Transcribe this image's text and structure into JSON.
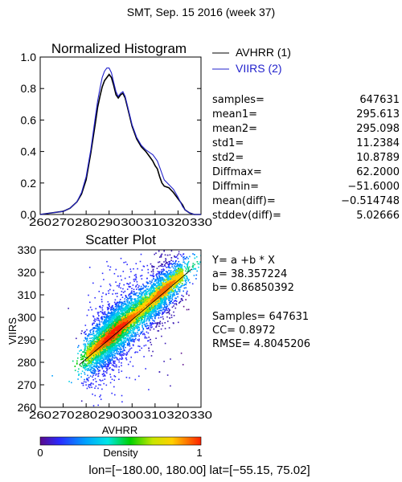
{
  "title": "SMT,  Sep. 15 2016 (week 37)",
  "footer": "lon=[−180.00, 180.00] lat=[−55.15, 75.02]",
  "colors": {
    "avhrr": "#000000",
    "viirs": "#2222cc"
  },
  "histogram": {
    "title": "Normalized Histogram",
    "legend": [
      {
        "label": "AVHRR (1)",
        "color": "#000000"
      },
      {
        "label": "VIIRS (2)",
        "color": "#2222cc"
      }
    ],
    "stats": [
      {
        "key": "samples=",
        "value": "647631"
      },
      {
        "key": "mean1=",
        "value": "295.613"
      },
      {
        "key": "mean2=",
        "value": "295.098"
      },
      {
        "key": "std1=",
        "value": "11.2384"
      },
      {
        "key": "std2=",
        "value": "10.8789"
      },
      {
        "key": "Diffmax=",
        "value": "62.2000"
      },
      {
        "key": "Diffmin=",
        "value": "−51.6000"
      },
      {
        "key": "mean(diff)=",
        "value": "−0.514748"
      },
      {
        "key": "stddev(diff)=",
        "value": "5.02666"
      }
    ],
    "xticks": [
      "260",
      "270",
      "280",
      "290",
      "300",
      "310",
      "320",
      "330"
    ],
    "yticks": [
      "0.0",
      "0.2",
      "0.4",
      "0.6",
      "0.8",
      "1.0"
    ]
  },
  "scatter": {
    "title": "Scatter Plot",
    "xlabel": "AVHRR",
    "ylabel": "VIIRS",
    "xticks": [
      "260",
      "270",
      "280",
      "290",
      "300",
      "310",
      "320",
      "330"
    ],
    "yticks": [
      "260",
      "270",
      "280",
      "290",
      "300",
      "310",
      "320",
      "330"
    ],
    "fit_lines": [
      "Y=  a  +b  *  X",
      "a=  38.357224",
      "b=  0.86850392"
    ],
    "metric_lines": [
      "Samples=  647631",
      "CC=    0.8972",
      "RMSE=  4.8045206"
    ]
  },
  "colorbar": {
    "min_label": "0",
    "max_label": "1",
    "label": "Density"
  },
  "chart_data": [
    {
      "type": "line",
      "title": "Normalized Histogram",
      "xlabel": "",
      "ylabel": "",
      "xlim": [
        260,
        330
      ],
      "ylim": [
        0,
        1.0
      ],
      "series": [
        {
          "name": "AVHRR (1)",
          "x": [
            260,
            265,
            270,
            273,
            276,
            278,
            280,
            282,
            284,
            285,
            286,
            287,
            288,
            289,
            290,
            291,
            292,
            293,
            294,
            295,
            296,
            297,
            298,
            300,
            302,
            304,
            306,
            307,
            308,
            309,
            310,
            311,
            312,
            313,
            314,
            316,
            318,
            320,
            321,
            322,
            323,
            324,
            325,
            327,
            330
          ],
          "y": [
            0.0,
            0.01,
            0.02,
            0.04,
            0.08,
            0.13,
            0.22,
            0.39,
            0.58,
            0.68,
            0.75,
            0.81,
            0.85,
            0.87,
            0.89,
            0.87,
            0.82,
            0.76,
            0.74,
            0.76,
            0.77,
            0.74,
            0.68,
            0.56,
            0.48,
            0.43,
            0.4,
            0.38,
            0.36,
            0.34,
            0.31,
            0.29,
            0.24,
            0.2,
            0.18,
            0.17,
            0.14,
            0.1,
            0.08,
            0.06,
            0.03,
            0.02,
            0.01,
            0.0,
            0.0
          ]
        },
        {
          "name": "VIIRS (2)",
          "x": [
            260,
            265,
            270,
            273,
            276,
            278,
            280,
            282,
            284,
            285,
            286,
            287,
            288,
            289,
            290,
            291,
            292,
            293,
            294,
            295,
            296,
            297,
            298,
            300,
            302,
            304,
            306,
            307,
            308,
            309,
            310,
            311,
            312,
            313,
            314,
            316,
            318,
            320,
            321,
            322,
            323,
            324,
            325,
            327,
            330
          ],
          "y": [
            0.0,
            0.01,
            0.02,
            0.04,
            0.08,
            0.14,
            0.24,
            0.41,
            0.62,
            0.72,
            0.8,
            0.87,
            0.91,
            0.93,
            0.93,
            0.9,
            0.84,
            0.78,
            0.75,
            0.77,
            0.78,
            0.75,
            0.69,
            0.57,
            0.49,
            0.44,
            0.41,
            0.4,
            0.39,
            0.38,
            0.36,
            0.34,
            0.3,
            0.26,
            0.22,
            0.19,
            0.16,
            0.11,
            0.08,
            0.05,
            0.03,
            0.02,
            0.01,
            0.0,
            0.0
          ]
        }
      ]
    },
    {
      "type": "scatter",
      "title": "Scatter Plot",
      "xlabel": "AVHRR",
      "ylabel": "VIIRS",
      "xlim": [
        260,
        330
      ],
      "ylim": [
        260,
        330
      ],
      "fit": {
        "a": 38.357224,
        "b": 0.86850392
      },
      "samples": 647631,
      "cc": 0.8972,
      "rmse": 4.8045206
    }
  ]
}
